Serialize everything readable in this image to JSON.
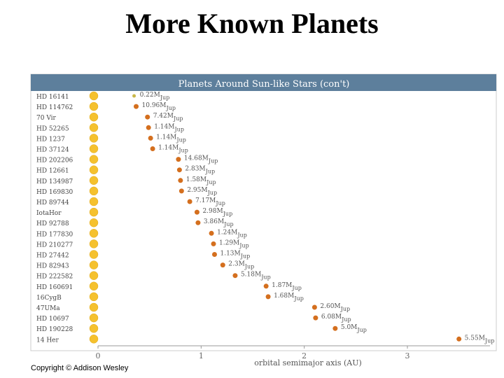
{
  "slide": {
    "title": "More Known Planets",
    "copyright": "Copyright © Addison Wesley"
  },
  "colors": {
    "header_bg": "#5d7f9c",
    "header_text": "#ffffff",
    "star": "#f5c12e",
    "planet": "#d46f1e",
    "small_planet": "#c9b84a",
    "axis": "#999999"
  },
  "chart_data": {
    "type": "scatter",
    "title": "Planets Around Sun-like Stars (con't)",
    "xlabel": "orbital semimajor axis (AU)",
    "ylabel": "",
    "xlim": [
      0,
      3.6
    ],
    "xticks": [
      0,
      1,
      2,
      3
    ],
    "grid": false,
    "mass_unit": "M",
    "mass_sub": "Jup",
    "planets": [
      {
        "star": "HD 16141",
        "a": 0.35,
        "mass": "0.22"
      },
      {
        "star": "HD 114762",
        "a": 0.37,
        "mass": "10.96"
      },
      {
        "star": "70 Vir",
        "a": 0.48,
        "mass": "7.42"
      },
      {
        "star": "HD 52265",
        "a": 0.49,
        "mass": "1.14"
      },
      {
        "star": "HD 1237",
        "a": 0.51,
        "mass": "1.14"
      },
      {
        "star": "HD 37124",
        "a": 0.53,
        "mass": "1.14"
      },
      {
        "star": "HD 202206",
        "a": 0.78,
        "mass": "14.68"
      },
      {
        "star": "HD 12661",
        "a": 0.79,
        "mass": "2.83"
      },
      {
        "star": "HD 134987",
        "a": 0.8,
        "mass": "1.58"
      },
      {
        "star": "HD 169830",
        "a": 0.81,
        "mass": "2.95"
      },
      {
        "star": "HD 89744",
        "a": 0.89,
        "mass": "7.17"
      },
      {
        "star": "IotaHor",
        "a": 0.96,
        "mass": "2.98"
      },
      {
        "star": "HD 92788",
        "a": 0.97,
        "mass": "3.86"
      },
      {
        "star": "HD 177830",
        "a": 1.1,
        "mass": "1.24"
      },
      {
        "star": "HD 210277",
        "a": 1.12,
        "mass": "1.29"
      },
      {
        "star": "HD 27442",
        "a": 1.13,
        "mass": "1.13"
      },
      {
        "star": "HD 82943",
        "a": 1.21,
        "mass": "2.3"
      },
      {
        "star": "HD 222582",
        "a": 1.33,
        "mass": "5.18"
      },
      {
        "star": "HD 160691",
        "a": 1.63,
        "mass": "1.87"
      },
      {
        "star": "16CygB",
        "a": 1.65,
        "mass": "1.68"
      },
      {
        "star": "47UMa",
        "a": 2.1,
        "mass": "2.60"
      },
      {
        "star": "HD 10697",
        "a": 2.11,
        "mass": "6.08"
      },
      {
        "star": "HD 190228",
        "a": 2.3,
        "mass": "5.0"
      },
      {
        "star": "14 Her",
        "a": 3.5,
        "mass": "5.55"
      }
    ]
  }
}
